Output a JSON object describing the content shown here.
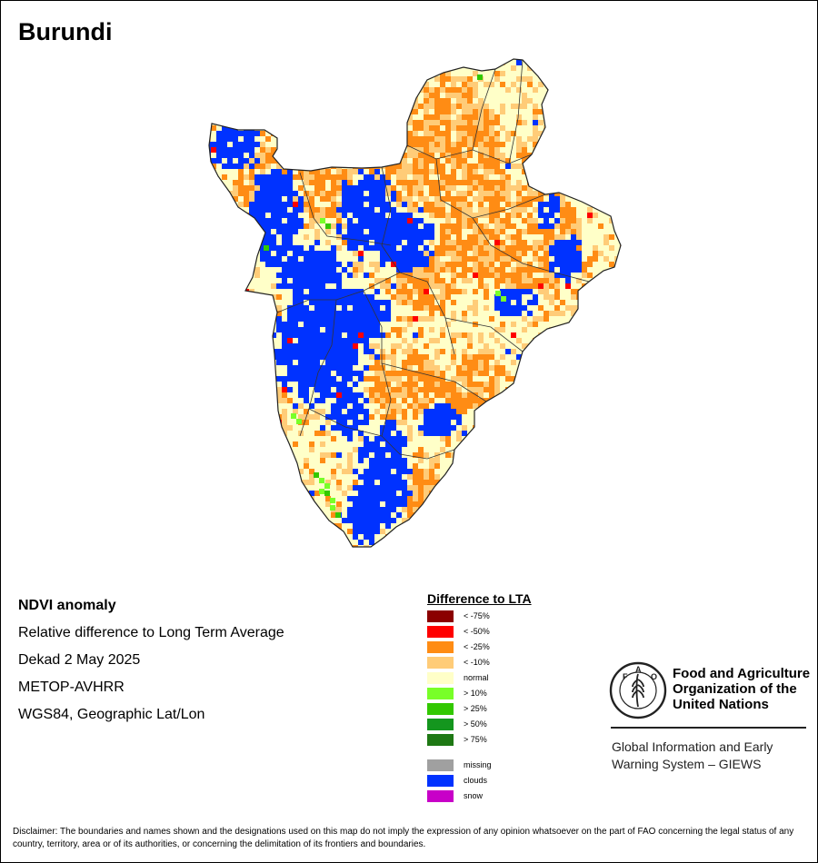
{
  "map": {
    "title": "Burundi",
    "colors": {
      "normal": "#ffffc8",
      "lt10": "#ffcc78",
      "lt25": "#ff8c14",
      "lt50": "#ff0000",
      "lt75": "#8b0000",
      "gt10": "#78ff28",
      "gt25": "#32c800",
      "gt50": "#14961e",
      "gt75": "#1e7814",
      "clouds": "#0032ff",
      "missing": "#a0a0a0",
      "snow": "#c800c8",
      "border": "#222222"
    }
  },
  "metadata": {
    "product": "NDVI anomaly",
    "description": "Relative difference to Long Term Average",
    "period": "Dekad 2 May 2025",
    "sensor": "METOP-AVHRR",
    "projection": "WGS84, Geographic Lat/Lon"
  },
  "legend": {
    "title": "Difference to LTA",
    "items": [
      {
        "label": "< -75%",
        "color": "#8b0000"
      },
      {
        "label": "< -50%",
        "color": "#ff0000"
      },
      {
        "label": "< -25%",
        "color": "#ff8c14"
      },
      {
        "label": "< -10%",
        "color": "#ffcc78"
      },
      {
        "label": "normal",
        "color": "#ffffc8"
      },
      {
        "label": "> 10%",
        "color": "#78ff28"
      },
      {
        "label": "> 25%",
        "color": "#32c800"
      },
      {
        "label": "> 50%",
        "color": "#14961e"
      },
      {
        "label": "> 75%",
        "color": "#1e7814"
      },
      {
        "label": "missing",
        "color": "#a0a0a0"
      },
      {
        "label": "clouds",
        "color": "#0032ff"
      },
      {
        "label": "snow",
        "color": "#c800c8"
      }
    ]
  },
  "branding": {
    "org_line1": "Food and Agriculture",
    "org_line2": "Organization of the",
    "org_line3": "United Nations",
    "logo_text": "FAO",
    "logo_motto": "FIAT PANIS",
    "system_line1": "Global Information and Early",
    "system_line2": "Warning System – GIEWS"
  },
  "disclaimer": "Disclaimer: The boundaries and names shown and the designations used on this map do not imply the expression of any opinion whatsoever on the part of FAO concerning the legal status of any country, territory, area or of its authorities, or concerning the delimitation of its frontiers and boundaries."
}
